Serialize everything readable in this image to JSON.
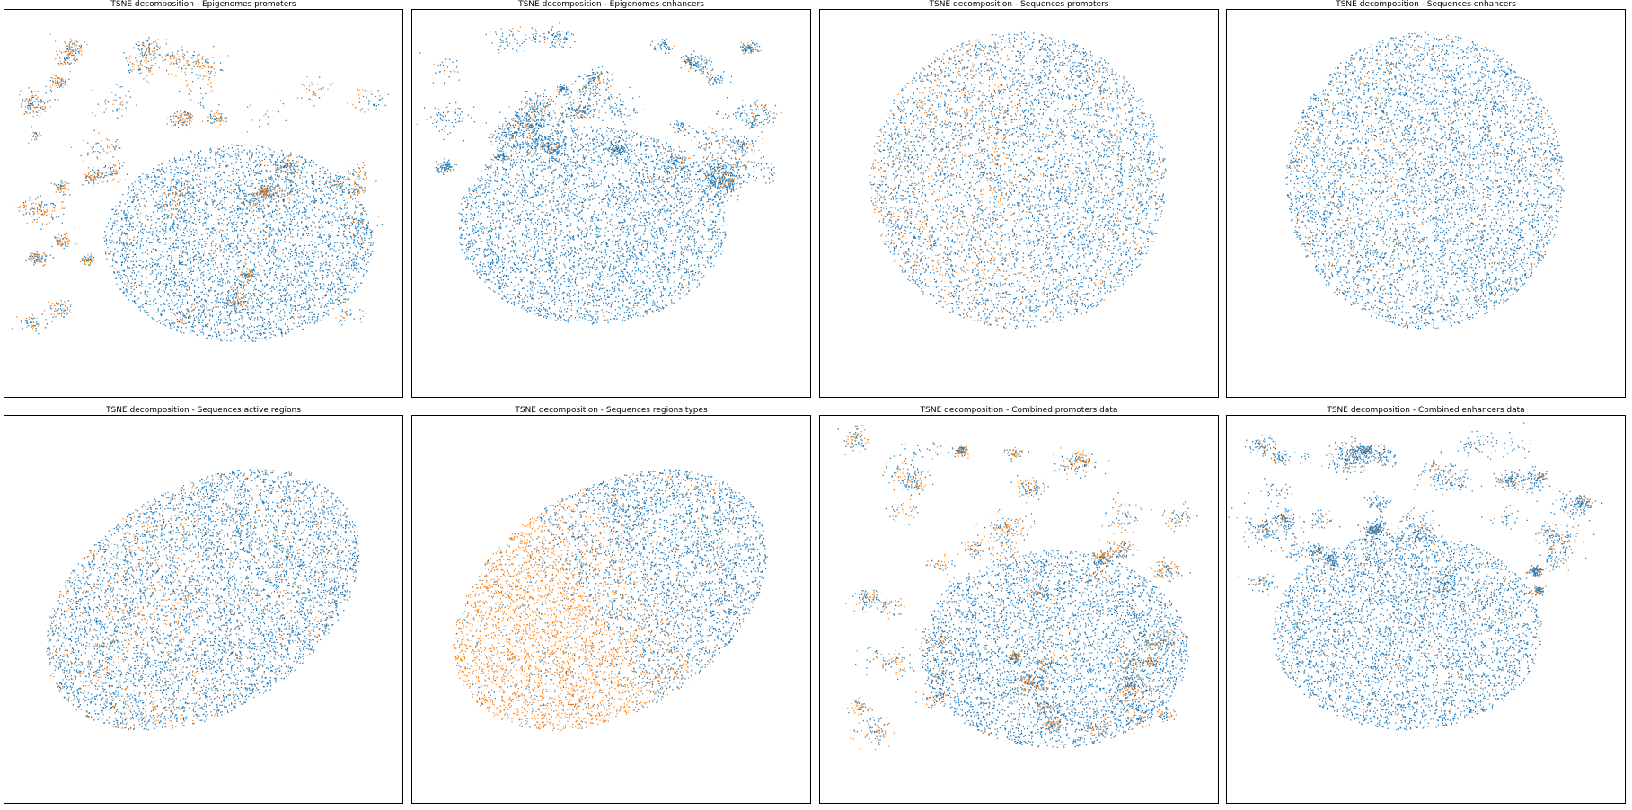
{
  "colors": {
    "blue": "#1f77b4",
    "orange": "#ff7f0e"
  },
  "chart_data": [
    {
      "type": "scatter",
      "title": "TSNE decomposition - Epigenomes promoters",
      "xlabel": "",
      "ylabel": "",
      "axes": "off",
      "grid": false,
      "legend": "none",
      "series": [
        {
          "color": "#1f77b4"
        },
        {
          "color": "#ff7f0e"
        }
      ],
      "shape": "fragmented",
      "orange_density": 0.28
    },
    {
      "type": "scatter",
      "title": "TSNE decomposition - Epigenomes enhancers",
      "xlabel": "",
      "ylabel": "",
      "axes": "off",
      "grid": false,
      "legend": "none",
      "series": [
        {
          "color": "#1f77b4"
        },
        {
          "color": "#ff7f0e"
        }
      ],
      "shape": "fragmented-top",
      "orange_density": 0.08
    },
    {
      "type": "scatter",
      "title": "TSNE decomposition - Sequences promoters",
      "xlabel": "",
      "ylabel": "",
      "axes": "off",
      "grid": false,
      "legend": "none",
      "series": [
        {
          "color": "#1f77b4"
        },
        {
          "color": "#ff7f0e"
        }
      ],
      "shape": "blob",
      "orange_density": 0.18
    },
    {
      "type": "scatter",
      "title": "TSNE decomposition - Sequences enhancers",
      "xlabel": "",
      "ylabel": "",
      "axes": "off",
      "grid": false,
      "legend": "none",
      "series": [
        {
          "color": "#1f77b4"
        },
        {
          "color": "#ff7f0e"
        }
      ],
      "shape": "blob-round",
      "orange_density": 0.06
    },
    {
      "type": "scatter",
      "title": "TSNE decomposition - Sequences active regions",
      "xlabel": "",
      "ylabel": "",
      "axes": "off",
      "grid": false,
      "legend": "none",
      "series": [
        {
          "color": "#1f77b4"
        },
        {
          "color": "#ff7f0e"
        }
      ],
      "shape": "ellipse-tilted",
      "orange_density": 0.15
    },
    {
      "type": "scatter",
      "title": "TSNE decomposition - Sequences regions types",
      "xlabel": "",
      "ylabel": "",
      "axes": "off",
      "grid": false,
      "legend": "none",
      "series": [
        {
          "color": "#1f77b4"
        },
        {
          "color": "#ff7f0e"
        }
      ],
      "shape": "ellipse-tilted-split",
      "orange_density": 0.5
    },
    {
      "type": "scatter",
      "title": "TSNE decomposition - Combined promoters data",
      "xlabel": "",
      "ylabel": "",
      "axes": "off",
      "grid": false,
      "legend": "none",
      "series": [
        {
          "color": "#1f77b4"
        },
        {
          "color": "#ff7f0e"
        }
      ],
      "shape": "fragmented",
      "orange_density": 0.28
    },
    {
      "type": "scatter",
      "title": "TSNE decomposition - Combined enhancers data",
      "xlabel": "",
      "ylabel": "",
      "axes": "off",
      "grid": false,
      "legend": "none",
      "series": [
        {
          "color": "#1f77b4"
        },
        {
          "color": "#ff7f0e"
        }
      ],
      "shape": "fragmented-top",
      "orange_density": 0.08
    }
  ]
}
